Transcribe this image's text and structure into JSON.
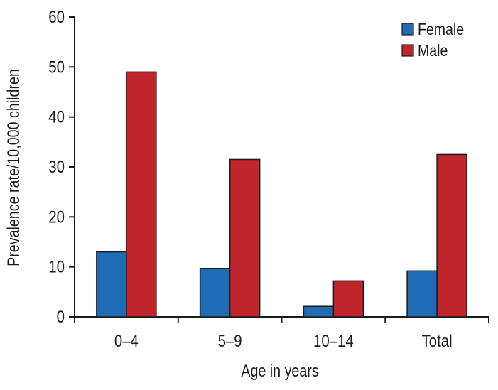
{
  "chart_data": {
    "type": "bar",
    "title": "",
    "xlabel": "Age in years",
    "ylabel": "Prevalence rate/10,000 children",
    "categories": [
      "0–4",
      "5–9",
      "10–14",
      "Total"
    ],
    "series": [
      {
        "name": "Female",
        "color": "#1f6cb4",
        "values": [
          13,
          9.7,
          2.1,
          9.2
        ]
      },
      {
        "name": "Male",
        "color": "#c0252b",
        "values": [
          49,
          31.5,
          7.2,
          32.5
        ]
      }
    ],
    "ylim": [
      0,
      60
    ],
    "yticks": [
      0,
      10,
      20,
      30,
      40,
      50,
      60
    ],
    "grid": false,
    "legend_position": "top-right"
  }
}
